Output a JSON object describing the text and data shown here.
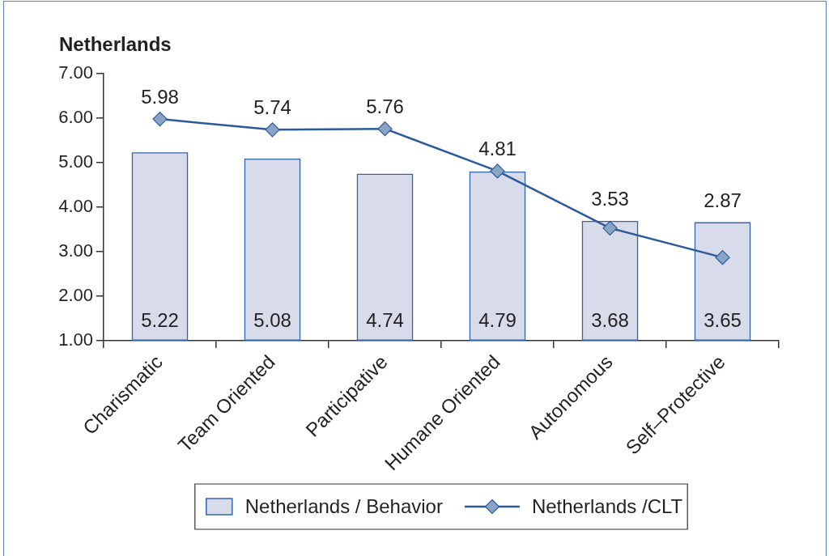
{
  "chart_data": {
    "type": "bar",
    "title": "Netherlands",
    "categories": [
      "Charismatic",
      "Team Oriented",
      "Participative",
      "Humane Oriented",
      "Autonomous",
      "Self–Protective"
    ],
    "series": [
      {
        "name": "Netherlands / Behavior",
        "color": "#d8dbea",
        "values": [
          5.22,
          5.08,
          4.74,
          4.79,
          3.68,
          3.65
        ]
      },
      {
        "name": "Netherlands /CLT",
        "type": "line",
        "color": "#2b5a9a",
        "marker": "diamond",
        "values": [
          5.98,
          5.74,
          5.76,
          4.81,
          3.53,
          2.87
        ]
      }
    ],
    "ylim": [
      1,
      7
    ],
    "yticks": [
      {
        "value": 1,
        "label": "1.00"
      },
      {
        "value": 2,
        "label": "2.00"
      },
      {
        "value": 3,
        "label": "3.00"
      },
      {
        "value": 4,
        "label": "4.00"
      },
      {
        "value": 5,
        "label": "5.00"
      },
      {
        "value": 6,
        "label": "6.00"
      },
      {
        "value": 7,
        "label": "7.00"
      }
    ],
    "data_labels": true,
    "legend": "bottom"
  }
}
